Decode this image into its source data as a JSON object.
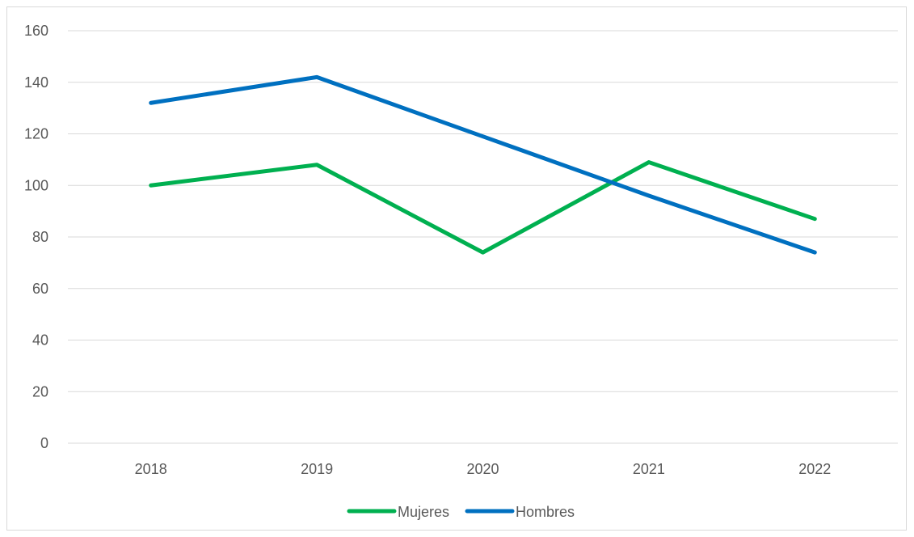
{
  "chart_data": {
    "type": "line",
    "categories": [
      "2018",
      "2019",
      "2020",
      "2021",
      "2022"
    ],
    "series": [
      {
        "name": "Mujeres",
        "values": [
          100,
          108,
          74,
          109,
          87
        ],
        "color": "#00b050"
      },
      {
        "name": "Hombres",
        "values": [
          132,
          142,
          119,
          96,
          74
        ],
        "color": "#0070c0"
      }
    ],
    "ylim": [
      0,
      160
    ],
    "yticks": [
      0,
      20,
      40,
      60,
      80,
      100,
      120,
      140,
      160
    ],
    "grid": true,
    "gridColor": "#d9d9d9",
    "legend": "bottom"
  }
}
